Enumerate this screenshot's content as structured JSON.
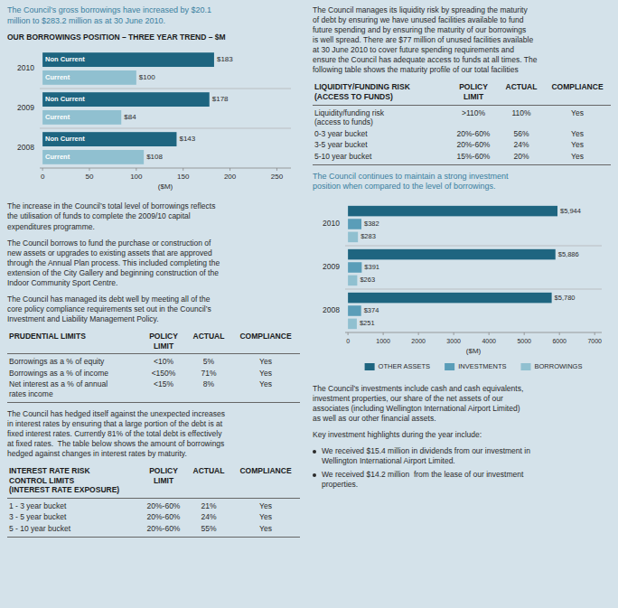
{
  "chart_data": [
    {
      "type": "bar",
      "orientation": "horizontal",
      "title": "OUR BORROWINGS POSITION – THREE YEAR TREND – $M",
      "x_label": "($M)",
      "categories": [
        "2010",
        "2009",
        "2008"
      ],
      "series": [
        {
          "name": "Non Current",
          "color": "#1e6580",
          "values": [
            183,
            178,
            143
          ],
          "value_labels": [
            "$183",
            "$178",
            "$143"
          ]
        },
        {
          "name": "Current",
          "color": "#90c0d0",
          "values": [
            100,
            84,
            108
          ],
          "value_labels": [
            "$100",
            "$84",
            "$108"
          ]
        }
      ],
      "xlim": [
        -3,
        265
      ],
      "xticks": [
        0,
        50,
        100,
        150,
        200,
        250
      ],
      "grid": false,
      "data_labels": true,
      "tick_labels": "x"
    },
    {
      "type": "bar",
      "orientation": "horizontal",
      "x_label": "($M)",
      "categories": [
        "2010",
        "2009",
        "2008"
      ],
      "series": [
        {
          "name": "OTHER ASSETS",
          "color": "#1e6580",
          "values": [
            5944,
            5886,
            5780
          ],
          "value_labels": [
            "$5,944",
            "$5,886",
            "$5,780"
          ]
        },
        {
          "name": "INVESTMENTS",
          "color": "#5a9db8",
          "values": [
            382,
            391,
            374
          ],
          "value_labels": [
            "$382",
            "$391",
            "$374"
          ]
        },
        {
          "name": "BORROWINGS",
          "color": "#90c0d0",
          "values": [
            283,
            263,
            251
          ],
          "value_labels": [
            "$283",
            "$263",
            "$251"
          ]
        }
      ],
      "xlim": [
        -80,
        7200
      ],
      "xticks": [
        0,
        1000,
        2000,
        3000,
        4000,
        5000,
        6000,
        7000
      ],
      "grid": false,
      "data_labels": true,
      "tick_labels": "x",
      "legend": "bottom"
    }
  ],
  "page_text": {
    "left_intro": "The Council’s gross borrowings have increased by $20.1\nmillion to $283.2 million as at 30 June 2010.",
    "left_paras": [
      "The increase in the Council’s total level of borrowings reflects\nthe utilisation of funds to complete the 2009/10 capital\nexpenditures programme.",
      "The Council borrows to fund the purchase or construction of\nnew assets or upgrades to existing assets that are approved\nthrough the Annual Plan process. This included completing the\nextension of the City Gallery and beginning construction of the\nIndoor Community Sport Centre.",
      "The Council has managed its debt well by meeting all of the\ncore policy compliance requirements set out in the Council’s\nInvestment and Liability Management Policy."
    ],
    "left_para4": "The Council has hedged itself against the unexpected increases\nin interest rates by ensuring that a large portion of the debt is at\nfixed interest rates. Currently 81% of the total debt is effectively\nat fixed rates.  The table below shows the amount of borrowings\nhedged against changes in interest rates by maturity.",
    "right_intro": "The Council manages its liquidity risk by spreading the maturity\nof debt by ensuring we have unused facilities available to fund\nfuture spending and by ensuring the maturity of our borrowings\nis well spread. There are $77 million of unused facilities available\nat 30 June 2010 to cover future spending requirements and\nensure the Council has adequate access to funds at all times. The\nfollowing table shows the maturity profile of our total facilities",
    "invest_intro": "The Council continues to maintain a strong investment\nposition when compared to the level of borrowings.",
    "right_paras": [
      "The Council’s investments include cash and cash equivalents,\ninvestment properties, our share of the net assets of our\nassociates (including Wellington International Airport Limited)\nas well as our other financial assets.",
      "Key investment highlights during the year include:"
    ],
    "bullets": [
      "We received $15.4 million in dividends from our investment in\nWellington International Airport Limited.",
      "We received $14.2 million  from the lease of our investment\nproperties."
    ]
  },
  "tables": [
    {
      "title": [
        "PRUDENTIAL LIMITS"
      ],
      "columns": [
        "POLICY\nLIMIT",
        "ACTUAL",
        "COMPLIANCE"
      ],
      "rows": [
        [
          "Borrowings as a % of equity",
          "<10%",
          "5%",
          "Yes"
        ],
        [
          "Borrowings as a % of income",
          "<150%",
          "71%",
          "Yes"
        ],
        [
          "Net interest as a % of annual\nrates income",
          "<15%",
          "8%",
          "Yes"
        ]
      ]
    },
    {
      "title": [
        "INTEREST RATE RISK",
        "CONTROL LIMITS",
        "(INTEREST RATE EXPOSURE)"
      ],
      "columns": [
        "POLICY\nLIMIT",
        "ACTUAL",
        "COMPLIANCE"
      ],
      "rows": [
        [
          "1 - 3 year bucket",
          "20%-60%",
          "21%",
          "Yes"
        ],
        [
          "3 - 5 year bucket",
          "20%-60%",
          "24%",
          "Yes"
        ],
        [
          "5 - 10 year bucket",
          "20%-60%",
          "55%",
          "Yes"
        ]
      ]
    },
    {
      "title": [
        "LIQUIDITY/FUNDING RISK",
        "(ACCESS TO FUNDS)"
      ],
      "columns": [
        "POLICY\nLIMIT",
        "ACTUAL",
        "COMPLIANCE"
      ],
      "rows": [
        [
          "Liquidity/funding risk\n(access to funds)",
          ">110%",
          "110%",
          "Yes"
        ],
        [
          "0-3 year bucket",
          "20%-60%",
          "56%",
          "Yes"
        ],
        [
          "3-5 year bucket",
          "20%-60%",
          "24%",
          "Yes"
        ],
        [
          "5-10 year bucket",
          "15%-60%",
          "20%",
          "Yes"
        ]
      ]
    }
  ]
}
